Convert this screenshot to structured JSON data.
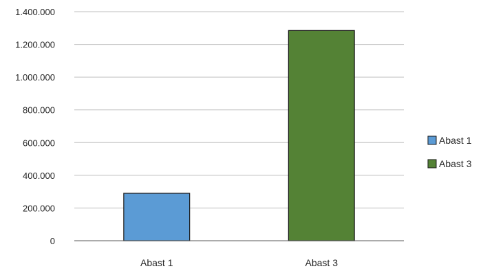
{
  "chart_data": {
    "type": "bar",
    "categories": [
      "Abast 1",
      "Abast 3"
    ],
    "values": [
      290000,
      1285000
    ],
    "colors": [
      "#5b9bd5",
      "#548235"
    ],
    "ylim": [
      0,
      1400000
    ],
    "yticks": [
      0,
      200000,
      400000,
      600000,
      800000,
      1000000,
      1200000,
      1400000
    ],
    "ytick_labels": [
      "0",
      "200.000",
      "400.000",
      "600.000",
      "800.000",
      "1.000.000",
      "1.200.000",
      "1.400.000"
    ],
    "grid": true,
    "legend": {
      "placement": "right",
      "entries": [
        {
          "label": "Abast 1",
          "color": "#5b9bd5"
        },
        {
          "label": "Abast 3",
          "color": "#548235"
        }
      ]
    },
    "title": "",
    "xlabel": "",
    "ylabel": ""
  }
}
